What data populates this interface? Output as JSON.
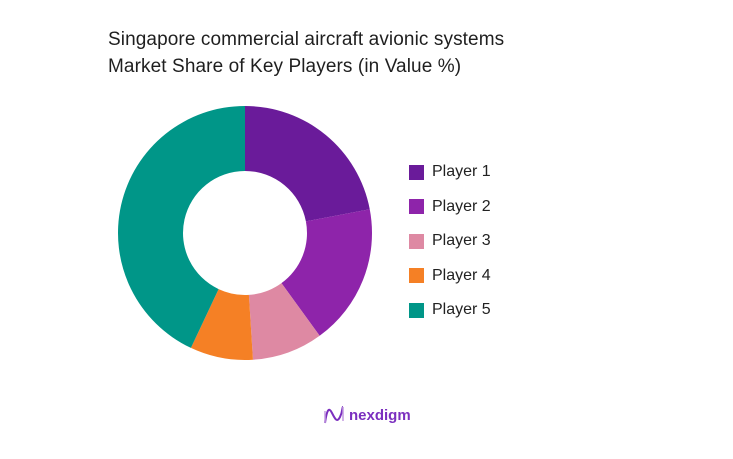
{
  "title": {
    "line1": "Singapore commercial aircraft avionic systems",
    "line2": "Market Share of Key Players (in Value %)"
  },
  "chart_data": {
    "type": "pie",
    "variant": "donut",
    "title": "Singapore commercial aircraft avionic systems Market Share of Key Players (in Value %)",
    "categories": [
      "Player 1",
      "Player 2",
      "Player 3",
      "Player 4",
      "Player 5"
    ],
    "values": [
      22,
      18,
      9,
      8,
      43
    ],
    "colors": [
      "#6a1b9a",
      "#8e24aa",
      "#de89a3",
      "#f58025",
      "#009688"
    ],
    "legend_position": "right",
    "start_angle": "12 o'clock, clockwise",
    "data_labels": false
  },
  "legend": {
    "items": [
      {
        "label": "Player 1",
        "color": "#6a1b9a"
      },
      {
        "label": "Player 2",
        "color": "#8e24aa"
      },
      {
        "label": "Player 3",
        "color": "#de89a3"
      },
      {
        "label": "Player 4",
        "color": "#f58025"
      },
      {
        "label": "Player 5",
        "color": "#009688"
      }
    ]
  },
  "branding": {
    "logo_text": "nexdigm",
    "logo_icon": "nexdigm-wave-icon"
  }
}
